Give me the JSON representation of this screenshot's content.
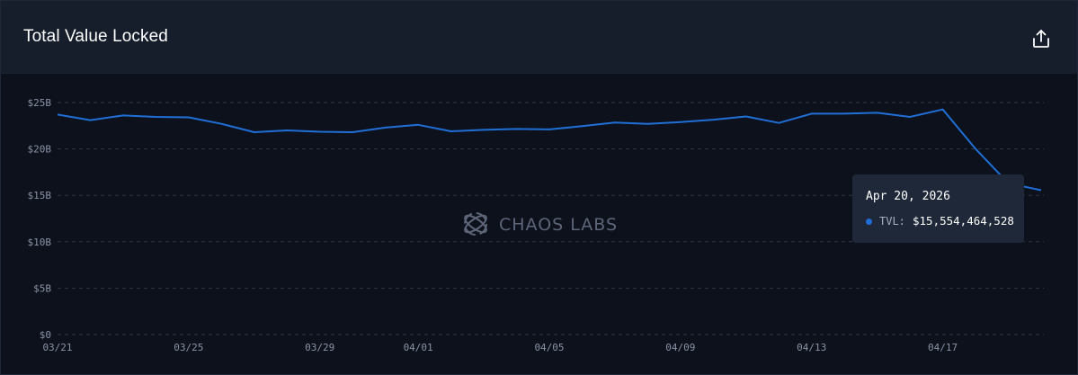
{
  "header": {
    "title": "Total Value Locked"
  },
  "icons": {
    "export": "share-upload-icon",
    "watermark": "chaos-labs-logo-icon"
  },
  "watermark": {
    "text": "CHAOS LABS"
  },
  "colors": {
    "line": "#1f6fd6",
    "background": "#0d111c",
    "header": "#161e2c",
    "tooltip": "#1e2838"
  },
  "tooltip": {
    "date": "Apr 20, 2026",
    "label": "TVL:",
    "value": "$15,554,464,528"
  },
  "chart_data": {
    "type": "line",
    "title": "Total Value Locked",
    "xlabel": "",
    "ylabel": "",
    "ylim": [
      0,
      25000000000
    ],
    "grid": true,
    "yticks": [
      {
        "value": 0,
        "label": "$0"
      },
      {
        "value": 5000000000,
        "label": "$5B"
      },
      {
        "value": 10000000000,
        "label": "$10B"
      },
      {
        "value": 15000000000,
        "label": "$15B"
      },
      {
        "value": 20000000000,
        "label": "$20B"
      },
      {
        "value": 25000000000,
        "label": "$25B"
      }
    ],
    "xticks": [
      "03/21",
      "03/25",
      "03/29",
      "04/01",
      "04/05",
      "04/09",
      "04/13",
      "04/17"
    ],
    "x": [
      "03/21",
      "03/22",
      "03/23",
      "03/24",
      "03/25",
      "03/26",
      "03/27",
      "03/28",
      "03/29",
      "03/30",
      "03/31",
      "04/01",
      "04/02",
      "04/03",
      "04/04",
      "04/05",
      "04/06",
      "04/07",
      "04/08",
      "04/09",
      "04/10",
      "04/11",
      "04/12",
      "04/13",
      "04/14",
      "04/15",
      "04/16",
      "04/17",
      "04/18",
      "04/19",
      "04/20"
    ],
    "series": [
      {
        "values": [
          23700000000.0,
          23100000000.0,
          23600000000.0,
          23450000000.0,
          23400000000.0,
          22700000000.0,
          21800000000.0,
          22000000000.0,
          21850000000.0,
          21800000000.0,
          22300000000.0,
          22600000000.0,
          21900000000.0,
          22050000000.0,
          22150000000.0,
          22100000000.0,
          22450000000.0,
          22850000000.0,
          22700000000.0,
          22900000000.0,
          23150000000.0,
          23500000000.0,
          22800000000.0,
          23800000000.0,
          23800000000.0,
          23900000000.0,
          23450000000.0,
          24250000000.0,
          20000000000.0,
          16300000000.0,
          15554464528.0
        ]
      }
    ]
  }
}
